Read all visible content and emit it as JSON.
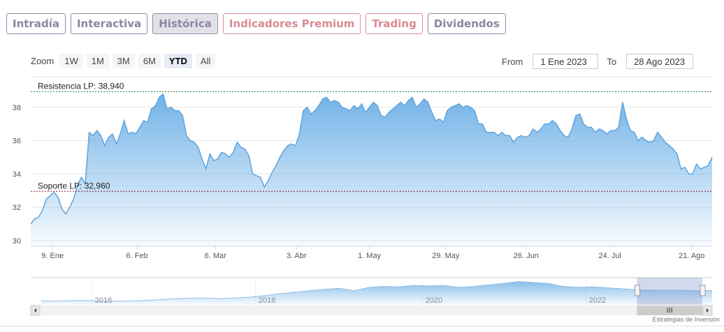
{
  "tabs": [
    {
      "label": "Intradía",
      "style": "normal"
    },
    {
      "label": "Interactiva",
      "style": "normal"
    },
    {
      "label": "Histórica",
      "style": "active"
    },
    {
      "label": "Indicadores Premium",
      "style": "red"
    },
    {
      "label": "Trading",
      "style": "red"
    },
    {
      "label": "Dividendos",
      "style": "normal"
    }
  ],
  "zoom": {
    "label": "Zoom",
    "buttons": [
      "1W",
      "1M",
      "3M",
      "6M",
      "YTD",
      "All"
    ],
    "selected": "YTD"
  },
  "range": {
    "from_label": "From",
    "from_value": "1 Ene 2023",
    "to_label": "To",
    "to_value": "28 Ago 2023"
  },
  "credit": "Estrategias de Inversión",
  "chart_data": {
    "type": "area",
    "ylim": [
      30,
      39.5
    ],
    "yticks": [
      30,
      32,
      34,
      36,
      38
    ],
    "xticks": [
      "9. Ene",
      "6. Feb",
      "6. Mar",
      "3. Abr",
      "1. May",
      "29. May",
      "26. Jun",
      "24. Jul",
      "21. Ago"
    ],
    "xtick_pos": [
      0.032,
      0.156,
      0.271,
      0.39,
      0.497,
      0.609,
      0.727,
      0.85,
      0.97
    ],
    "plotlines": [
      {
        "label": "Resistencia LP: 38,940",
        "value": 38.94,
        "color": "#2e7d32"
      },
      {
        "label": "Soporte LP: 32,960",
        "value": 32.96,
        "color": "#8b1a3a"
      }
    ],
    "values": [
      31.0,
      31.3,
      31.4,
      31.8,
      32.5,
      32.7,
      32.9,
      32.6,
      31.9,
      31.6,
      32.0,
      32.5,
      33.3,
      33.8,
      33.4,
      36.5,
      36.3,
      36.6,
      36.3,
      35.7,
      36.2,
      36.4,
      35.8,
      36.4,
      37.2,
      36.4,
      36.5,
      36.4,
      36.8,
      37.2,
      37.1,
      37.9,
      38.1,
      38.6,
      38.8,
      37.9,
      38.0,
      37.8,
      37.8,
      37.5,
      36.3,
      36.0,
      35.9,
      35.6,
      34.9,
      34.3,
      35.2,
      34.8,
      34.9,
      35.3,
      35.2,
      35.0,
      35.3,
      35.9,
      35.6,
      35.5,
      35.1,
      34.0,
      33.9,
      33.8,
      33.2,
      33.6,
      34.1,
      34.5,
      35.0,
      35.4,
      35.7,
      35.8,
      35.7,
      36.4,
      37.8,
      38.0,
      37.6,
      37.8,
      38.1,
      38.5,
      38.6,
      38.3,
      38.4,
      38.3,
      38.0,
      37.9,
      37.8,
      38.1,
      37.9,
      38.2,
      37.7,
      38.0,
      38.3,
      38.1,
      37.5,
      37.4,
      37.7,
      37.9,
      38.1,
      38.3,
      38.1,
      38.4,
      38.6,
      38.0,
      38.2,
      38.5,
      38.3,
      37.7,
      37.2,
      37.3,
      37.1,
      37.8,
      38.0,
      38.1,
      38.2,
      38.0,
      38.1,
      38.0,
      37.8,
      37.0,
      37.0,
      36.5,
      36.5,
      36.5,
      36.3,
      36.5,
      36.3,
      36.3,
      35.9,
      36.2,
      36.3,
      36.2,
      36.3,
      36.7,
      36.5,
      36.7,
      37.0,
      37.0,
      37.2,
      37.0,
      36.6,
      36.3,
      36.2,
      36.7,
      37.5,
      37.6,
      37.0,
      36.8,
      36.8,
      36.5,
      36.7,
      36.6,
      36.4,
      36.6,
      36.6,
      36.8,
      38.3,
      37.3,
      36.6,
      36.5,
      36.0,
      36.2,
      36.0,
      35.9,
      36.0,
      36.5,
      36.2,
      35.9,
      35.7,
      35.5,
      35.2,
      34.3,
      34.4,
      34.0,
      34.0,
      34.6,
      34.3,
      34.4,
      34.5,
      35.0
    ],
    "navigator": {
      "labels": [
        "2016",
        "2018",
        "2020",
        "2022"
      ],
      "label_pos": [
        0.09,
        0.33,
        0.575,
        0.815
      ],
      "values": [
        12,
        12,
        12.5,
        13,
        12,
        11.5,
        12,
        13,
        15,
        17,
        18,
        18,
        17,
        18,
        20,
        23,
        27,
        30,
        33,
        36,
        38,
        33,
        40,
        42,
        41,
        44,
        43,
        44,
        40,
        42,
        45,
        48,
        52,
        50,
        48,
        42,
        40,
        41,
        39,
        37,
        35,
        34,
        34,
        34,
        33,
        34
      ],
      "selected_range": [
        0.9,
        1.0
      ]
    }
  }
}
